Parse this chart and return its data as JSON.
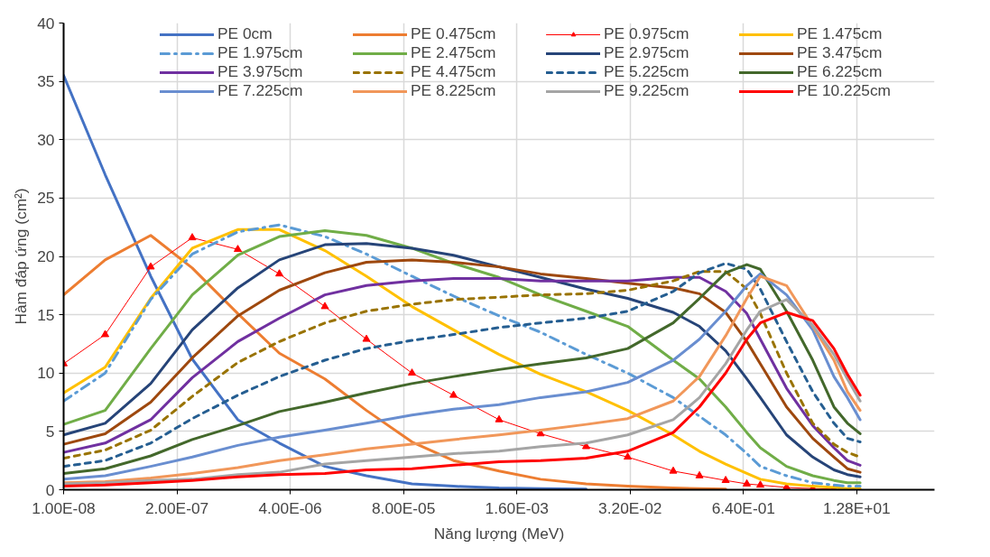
{
  "chart_data": {
    "type": "line",
    "xlabel": "Năng lượng (MeV)",
    "ylabel": "Hàm đáp ứng (cm²)",
    "log": "x",
    "x": [
      1e-08,
      3e-08,
      1e-07,
      3e-07,
      1e-06,
      3e-06,
      1e-05,
      3e-05,
      0.0001,
      0.0003,
      0.001,
      0.003,
      0.01,
      0.03,
      0.1,
      0.2,
      0.4,
      0.7,
      1,
      2,
      4,
      7,
      10,
      14
    ],
    "xlim": [
      1e-08,
      100
    ],
    "xticks": [
      {
        "value": 1e-08,
        "label": "1.00E-08"
      },
      {
        "value": 2e-07,
        "label": "2.00E-07"
      },
      {
        "value": 4e-06,
        "label": "4.00E-06"
      },
      {
        "value": 8e-05,
        "label": "8.00E-05"
      },
      {
        "value": 0.0016,
        "label": "1.60E-03"
      },
      {
        "value": 0.032,
        "label": "3.20E-02"
      },
      {
        "value": 0.64,
        "label": "6.40E-01"
      },
      {
        "value": 12.8,
        "label": "1.28E+01"
      }
    ],
    "ylim": [
      0,
      40
    ],
    "yticks": [
      0,
      5,
      10,
      15,
      20,
      25,
      30,
      35,
      40
    ],
    "grid": true,
    "legend": "top right",
    "series": [
      {
        "name": "PE 0cm",
        "color": "#4472c4",
        "values": [
          35.5,
          27,
          18.3,
          11.2,
          6.0,
          4.0,
          2.0,
          1.2,
          0.5,
          0.3,
          0.15,
          0.1,
          0.05,
          null,
          null,
          null,
          null,
          null,
          null,
          null,
          null,
          null,
          null,
          null
        ]
      },
      {
        "name": "PE 0.475cm",
        "color": "#ed7d31",
        "values": [
          16.7,
          19.7,
          21.8,
          19.0,
          15.1,
          11.7,
          9.5,
          6.8,
          4.1,
          2.5,
          1.6,
          0.9,
          0.5,
          0.3,
          0.15,
          0.1,
          0.05,
          null,
          null,
          null,
          null,
          null,
          null,
          null
        ]
      },
      {
        "name": "PE 0.975cm",
        "color": "#ff0000",
        "marker": "triangle",
        "values": [
          10.8,
          13.3,
          19.1,
          21.6,
          20.6,
          18.5,
          15.7,
          12.9,
          10.0,
          8.1,
          6.0,
          4.8,
          3.7,
          2.8,
          1.6,
          1.2,
          0.8,
          0.5,
          0.4,
          0.2,
          0.1,
          0.05,
          null,
          null
        ]
      },
      {
        "name": "PE 1.475cm",
        "color": "#ffc000",
        "values": [
          8.3,
          10.5,
          16.4,
          20.7,
          22.3,
          22.3,
          20.5,
          18.3,
          15.7,
          13.7,
          11.6,
          9.9,
          8.4,
          6.8,
          4.7,
          3.3,
          2.2,
          1.4,
          0.9,
          0.5,
          0.3,
          0.2,
          0.1,
          0.1
        ]
      },
      {
        "name": "PE 1.975cm",
        "color": "#5b9bd5",
        "line_style": "dashdot",
        "values": [
          7.6,
          10.0,
          16.3,
          20.2,
          22.1,
          22.7,
          21.7,
          20.2,
          18.3,
          16.6,
          14.9,
          13.5,
          11.6,
          10.0,
          7.9,
          6.3,
          4.7,
          3.1,
          2.0,
          1.2,
          0.6,
          0.4,
          0.3,
          0.3
        ]
      },
      {
        "name": "PE 2.475cm",
        "color": "#70ad47",
        "values": [
          5.6,
          6.8,
          12.1,
          16.7,
          20.1,
          21.7,
          22.2,
          21.8,
          20.7,
          19.4,
          18.2,
          16.7,
          15.3,
          14.0,
          11.1,
          9.5,
          7.1,
          4.9,
          3.6,
          2.0,
          1.2,
          0.8,
          0.6,
          0.6
        ]
      },
      {
        "name": "PE 2.975cm",
        "color": "#264478",
        "values": [
          4.7,
          5.7,
          9.1,
          13.7,
          17.3,
          19.7,
          21.0,
          21.1,
          20.7,
          20.1,
          19.1,
          18.2,
          17.2,
          16.4,
          15.2,
          14.0,
          11.9,
          9.5,
          7.9,
          4.7,
          2.8,
          1.7,
          1.3,
          1.1
        ]
      },
      {
        "name": "PE 3.475cm",
        "color": "#9e480e",
        "values": [
          3.9,
          4.8,
          7.5,
          11.3,
          14.9,
          17.1,
          18.6,
          19.5,
          19.7,
          19.5,
          19.1,
          18.5,
          18.1,
          17.7,
          17.3,
          16.8,
          15.2,
          12.7,
          10.8,
          7.1,
          4.4,
          2.8,
          1.8,
          1.5
        ]
      },
      {
        "name": "PE 3.975cm",
        "color": "#7030a0",
        "values": [
          3.2,
          4.0,
          6.0,
          9.6,
          12.7,
          14.7,
          16.7,
          17.5,
          17.9,
          18.1,
          18.1,
          17.9,
          17.9,
          17.9,
          18.2,
          18.2,
          17.0,
          15.1,
          12.9,
          8.7,
          5.5,
          3.6,
          2.5,
          2.1
        ]
      },
      {
        "name": "PE 4.475cm",
        "color": "#997300",
        "line_style": "dashed",
        "values": [
          2.7,
          3.4,
          5.1,
          8.0,
          10.9,
          12.7,
          14.3,
          15.3,
          15.9,
          16.3,
          16.5,
          16.7,
          16.8,
          17.1,
          17.9,
          18.7,
          18.7,
          17.2,
          15.1,
          10.0,
          5.7,
          3.9,
          3.2,
          2.8
        ]
      },
      {
        "name": "PE 5.225cm",
        "color": "#255e91",
        "line_style": "dashed",
        "values": [
          2.0,
          2.5,
          4.0,
          6.1,
          8.1,
          9.7,
          11.1,
          12.1,
          12.8,
          13.3,
          13.9,
          14.3,
          14.7,
          15.3,
          17.0,
          18.6,
          19.4,
          18.9,
          17.2,
          12.7,
          8.4,
          5.7,
          4.4,
          4.1
        ]
      },
      {
        "name": "PE 6.225cm",
        "color": "#43682b",
        "values": [
          1.4,
          1.8,
          2.9,
          4.3,
          5.5,
          6.7,
          7.5,
          8.3,
          9.1,
          9.7,
          10.3,
          10.8,
          11.3,
          12.1,
          14.3,
          16.4,
          18.6,
          19.3,
          18.9,
          15.3,
          11.1,
          7.1,
          5.7,
          4.8
        ]
      },
      {
        "name": "PE 7.225cm",
        "color": "#698ed0",
        "values": [
          0.9,
          1.2,
          2.0,
          2.8,
          3.8,
          4.5,
          5.1,
          5.7,
          6.4,
          6.9,
          7.3,
          7.9,
          8.4,
          9.2,
          11.1,
          12.9,
          15.3,
          17.5,
          18.5,
          16.7,
          13.7,
          9.7,
          7.9,
          6.0
        ]
      },
      {
        "name": "PE 8.225cm",
        "color": "#f1975a",
        "values": [
          0.6,
          0.7,
          1.0,
          1.4,
          1.9,
          2.5,
          3.0,
          3.5,
          3.9,
          4.3,
          4.7,
          5.1,
          5.6,
          6.1,
          7.6,
          9.7,
          13.2,
          16.4,
          18.3,
          17.5,
          14.0,
          11.1,
          8.4,
          6.8
        ]
      },
      {
        "name": "PE 9.225cm",
        "color": "#a5a5a5",
        "values": [
          0.5,
          0.6,
          0.8,
          0.9,
          1.3,
          1.5,
          2.2,
          2.5,
          2.8,
          3.1,
          3.3,
          3.7,
          4.0,
          4.7,
          6.0,
          7.9,
          10.8,
          13.7,
          15.3,
          16.3,
          14.1,
          11.6,
          9.5,
          7.6
        ]
      },
      {
        "name": "PE 10.225cm",
        "color": "#ff0000",
        "values": [
          0.3,
          0.4,
          0.6,
          0.8,
          1.1,
          1.3,
          1.4,
          1.7,
          1.8,
          2.1,
          2.4,
          2.5,
          2.7,
          3.3,
          4.9,
          7.1,
          10.0,
          12.9,
          14.3,
          15.2,
          14.5,
          12.1,
          9.9,
          8.1
        ]
      }
    ]
  }
}
